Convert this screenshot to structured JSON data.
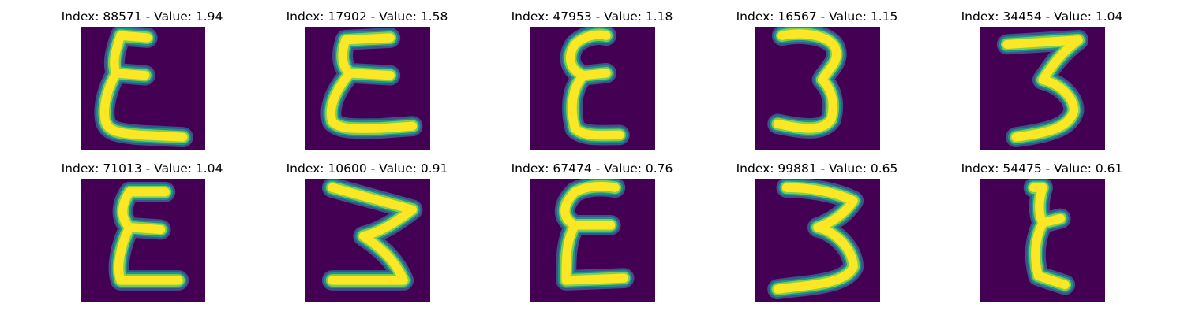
{
  "palette": {
    "background": "#440154",
    "stroke_mid": "#21918c",
    "stroke_edge": "#3b528b",
    "stroke_high": "#fde725",
    "stroke_light": "#7ad151"
  },
  "panels": [
    {
      "title": "Index: 88571 - Value: 1.94",
      "glyph": "epsilon-wide"
    },
    {
      "title": "Index: 17902 - Value: 1.58",
      "glyph": "epsilon-bold"
    },
    {
      "title": "Index: 47953 - Value: 1.18",
      "glyph": "epsilon-narrow"
    },
    {
      "title": "Index: 16567 - Value: 1.15",
      "glyph": "three-a"
    },
    {
      "title": "Index: 34454 - Value: 1.04",
      "glyph": "three-b"
    },
    {
      "title": "Index: 71013 - Value: 1.04",
      "glyph": "epsilon-plain"
    },
    {
      "title": "Index: 10600 - Value: 0.91",
      "glyph": "three-c"
    },
    {
      "title": "Index: 67474 - Value: 0.76",
      "glyph": "epsilon-loop"
    },
    {
      "title": "Index: 99881 - Value: 0.65",
      "glyph": "three-d"
    },
    {
      "title": "Index: 54475 - Value: 0.61",
      "glyph": "epsilon-thin"
    }
  ]
}
